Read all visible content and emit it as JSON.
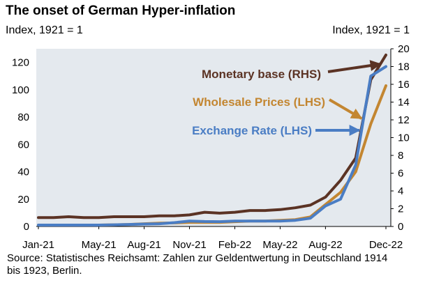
{
  "title": "The onset of German Hyper-inflation",
  "left_axis_label": "Index, 1921 = 1",
  "right_axis_label": "Index, 1921 = 1",
  "source": "Source: Statistisches Reichsamt: Zahlen zur Geldentwertung in Deutschland 1914 bis 1923, Berlin.",
  "chart_data": {
    "type": "line",
    "x_tick_labels": [
      "Jan-21",
      "May-21",
      "Aug-21",
      "Nov-21",
      "Feb-22",
      "May-22",
      "Aug-22",
      "Dec-22"
    ],
    "x_tick_index": [
      0,
      4,
      7,
      10,
      13,
      16,
      19,
      23
    ],
    "left_ylim": [
      0,
      130
    ],
    "left_ticks": [
      0,
      20,
      40,
      60,
      80,
      100,
      120
    ],
    "right_ylim": [
      0,
      20
    ],
    "right_ticks": [
      0,
      2,
      4,
      6,
      8,
      10,
      12,
      14,
      16,
      18,
      20
    ],
    "series": [
      {
        "name": "Monetary base (RHS)",
        "axis": "right",
        "color": "#5b3324",
        "values": [
          1.0,
          1.0,
          1.1,
          1.0,
          1.0,
          1.1,
          1.1,
          1.1,
          1.2,
          1.2,
          1.3,
          1.6,
          1.5,
          1.6,
          1.8,
          1.8,
          1.9,
          2.1,
          2.4,
          3.3,
          5.2,
          7.7,
          16.5,
          19.3
        ]
      },
      {
        "name": "Wholesale Prices (LHS)",
        "axis": "left",
        "color": "#c38631",
        "values": [
          1,
          1,
          1,
          1,
          1,
          1.2,
          1.5,
          2,
          2.4,
          2.6,
          3,
          3,
          3,
          3.5,
          4,
          4,
          4.5,
          5,
          7,
          16,
          25,
          40,
          75,
          103
        ]
      },
      {
        "name": "Exchange Rate (LHS)",
        "axis": "left",
        "color": "#4a7dc4",
        "values": [
          1,
          1,
          1,
          1,
          1,
          1.2,
          1.5,
          1.8,
          2,
          2.8,
          4,
          3.6,
          3.5,
          4,
          4,
          4,
          4,
          4.5,
          6,
          15,
          20,
          45,
          110,
          117
        ]
      }
    ],
    "annotations": [
      {
        "text": "Monetary base (RHS)",
        "series": "Monetary base (RHS)",
        "arrow_to_index": 22
      },
      {
        "text": "Wholesale Prices (LHS)",
        "series": "Wholesale Prices (LHS)",
        "arrow_to_index": 22
      },
      {
        "text": "Exchange Rate (LHS)",
        "series": "Exchange Rate (LHS)",
        "arrow_to_index": 21
      }
    ]
  }
}
